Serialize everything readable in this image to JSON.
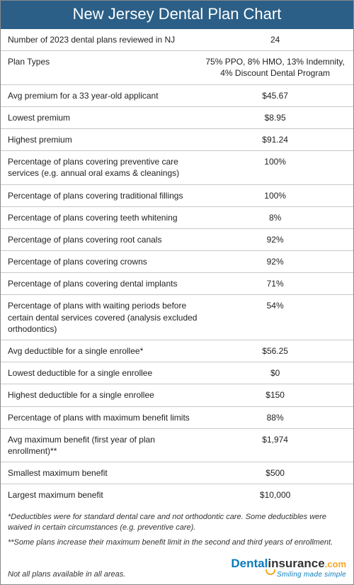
{
  "title": "New Jersey Dental Plan Chart",
  "colors": {
    "header_bg": "#2b5f87",
    "header_text": "#ffffff",
    "border": "#888888",
    "row_divider": "#c8c8c8",
    "text": "#222222",
    "logo_primary": "#0a7bbd",
    "logo_secondary": "#333333",
    "logo_accent": "#f5a623"
  },
  "rows": [
    {
      "label": "Number of 2023 dental plans reviewed in NJ",
      "value": "24"
    },
    {
      "label": "Plan Types",
      "value": "75% PPO, 8% HMO, 13% Indemnity, 4% Discount Dental Program"
    },
    {
      "label": "Avg premium for a 33 year-old applicant",
      "value": "$45.67"
    },
    {
      "label": "Lowest premium",
      "value": "$8.95"
    },
    {
      "label": "Highest premium",
      "value": "$91.24"
    },
    {
      "label": "Percentage of plans covering preventive care services (e.g. annual oral exams & cleanings)",
      "value": "100%"
    },
    {
      "label": "Percentage of plans covering traditional fillings",
      "value": "100%"
    },
    {
      "label": "Percentage of plans covering teeth whitening",
      "value": "8%"
    },
    {
      "label": "Percentage of plans covering root canals",
      "value": "92%"
    },
    {
      "label": "Percentage of plans covering crowns",
      "value": "92%"
    },
    {
      "label": "Percentage of plans covering dental implants",
      "value": "71%"
    },
    {
      "label": "Percentage of plans with waiting periods before certain dental services covered (analysis excluded orthodontics)",
      "value": "54%"
    },
    {
      "label": "Avg deductible for a single enrollee*",
      "value": "$56.25"
    },
    {
      "label": "Lowest deductible for a single enrollee",
      "value": "$0"
    },
    {
      "label": "Highest deductible for a single enrollee",
      "value": "$150"
    },
    {
      "label": "Percentage of plans with maximum benefit limits",
      "value": "88%"
    },
    {
      "label": "Avg maximum benefit (first year of plan enrollment)**",
      "value": "$1,974"
    },
    {
      "label": "Smallest maximum benefit",
      "value": "$500"
    },
    {
      "label": "Largest maximum benefit",
      "value": "$10,000"
    }
  ],
  "footnotes": [
    "*Deductibles were for standard dental care and not orthodontic care. Some deductibles were waived in certain circumstances (e.g. preventive care).",
    "**Some plans increase their maximum benefit limit in the second and third years of enrollment."
  ],
  "disclaimer": "Not all plans available in all areas.",
  "logo": {
    "part1": "Dental",
    "part2": "insurance",
    "part3": ".com",
    "tagline": "Smiling made simple"
  }
}
